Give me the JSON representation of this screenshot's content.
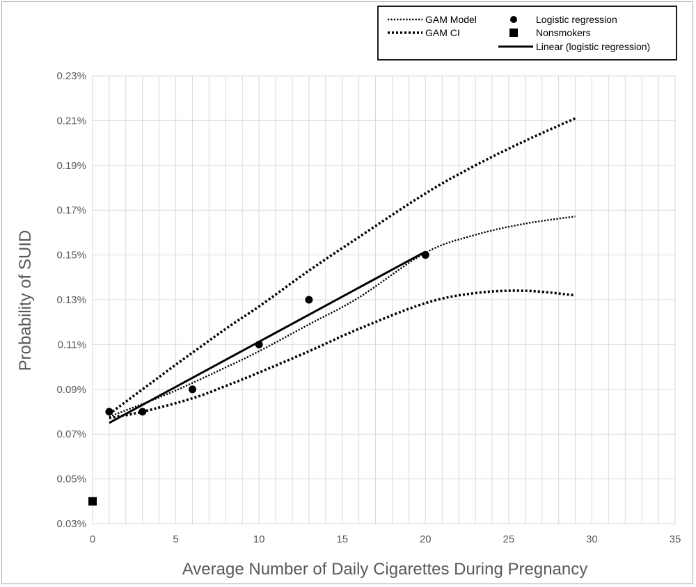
{
  "chart_data": {
    "type": "scatter",
    "title": "",
    "xlabel": "Average Number of Daily Cigarettes During Pregnancy",
    "ylabel": "Probability of SUID",
    "xlim": [
      0,
      35
    ],
    "ylim": [
      0.03,
      0.23
    ],
    "x_ticks": [
      0,
      5,
      10,
      15,
      20,
      25,
      30,
      35
    ],
    "x_tick_labels": [
      "0",
      "5",
      "10",
      "15",
      "20",
      "25",
      "30",
      "35"
    ],
    "y_ticks": [
      0.03,
      0.05,
      0.07,
      0.09,
      0.11,
      0.13,
      0.15,
      0.17,
      0.19,
      0.21,
      0.23
    ],
    "y_tick_labels": [
      "0.03%",
      "0.05%",
      "0.07%",
      "0.09%",
      "0.11%",
      "0.13%",
      "0.15%",
      "0.17%",
      "0.19%",
      "0.21%",
      "0.23%"
    ],
    "minor_x_grid_step": 1,
    "grid": true,
    "legend_position": "top-right",
    "series": [
      {
        "name": "GAM Model",
        "style": "dotted",
        "x": [
          1,
          3,
          5,
          8,
          10,
          13,
          16,
          20,
          23,
          26,
          29
        ],
        "y": [
          0.0778,
          0.0835,
          0.0895,
          0.0998,
          0.107,
          0.119,
          0.131,
          0.151,
          0.159,
          0.164,
          0.1672
        ]
      },
      {
        "name": "GAM CI",
        "style": "dotted-thick",
        "role": "upper",
        "x": [
          1,
          3,
          5,
          8,
          10,
          13,
          16,
          20,
          23,
          26,
          29
        ],
        "y": [
          0.079,
          0.09,
          0.101,
          0.117,
          0.127,
          0.143,
          0.158,
          0.1775,
          0.19,
          0.201,
          0.211
        ]
      },
      {
        "name": "GAM CI",
        "style": "dotted-thick",
        "role": "lower",
        "x": [
          1,
          3,
          6,
          8,
          10,
          13,
          16,
          20,
          23,
          26,
          29
        ],
        "y": [
          0.0772,
          0.08,
          0.086,
          0.0915,
          0.0975,
          0.107,
          0.117,
          0.1285,
          0.133,
          0.134,
          0.132
        ]
      },
      {
        "name": "Logistic regression",
        "style": "circle-marker",
        "x": [
          1,
          3,
          6,
          10,
          13,
          20
        ],
        "y": [
          0.08,
          0.08,
          0.09,
          0.11,
          0.13,
          0.15
        ]
      },
      {
        "name": "Nonsmokers",
        "style": "square-marker",
        "x": [
          0
        ],
        "y": [
          0.04
        ]
      },
      {
        "name": "Linear (logistic regression)",
        "style": "solid",
        "x": [
          1,
          20
        ],
        "y": [
          0.075,
          0.1515
        ]
      }
    ],
    "legend": [
      {
        "label": "GAM Model",
        "style": "dotted"
      },
      {
        "label": "Logistic regression",
        "style": "circle-marker"
      },
      {
        "label": "GAM CI",
        "style": "dotted-thick"
      },
      {
        "label": "Nonsmokers",
        "style": "square-marker"
      },
      {
        "label": "Linear (logistic regression)",
        "style": "solid"
      }
    ]
  }
}
